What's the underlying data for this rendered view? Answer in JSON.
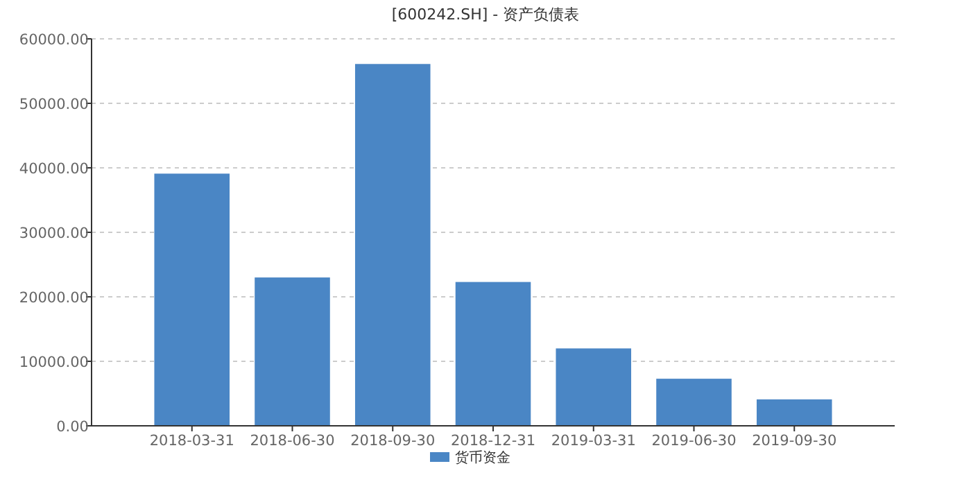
{
  "chart_data": {
    "type": "bar",
    "title": "[600242.SH] - 资产负债表",
    "categories": [
      "2018-03-31",
      "2018-06-30",
      "2018-09-30",
      "2018-12-31",
      "2019-03-31",
      "2019-06-30",
      "2019-09-30"
    ],
    "series": [
      {
        "name": "货币资金",
        "color": "#4a86c5",
        "values": [
          39100,
          23000,
          56100,
          22300,
          12000,
          7300,
          4100
        ]
      }
    ],
    "ylim": [
      0,
      60000
    ],
    "yticks": [
      {
        "value": 0,
        "label": "0.00"
      },
      {
        "value": 10000,
        "label": "10000.00"
      },
      {
        "value": 20000,
        "label": "20000.00"
      },
      {
        "value": 30000,
        "label": "30000.00"
      },
      {
        "value": 40000,
        "label": "40000.00"
      },
      {
        "value": 50000,
        "label": "50000.00"
      },
      {
        "value": 60000,
        "label": "60000.00"
      }
    ],
    "grid": "y",
    "legend": "bottom"
  }
}
